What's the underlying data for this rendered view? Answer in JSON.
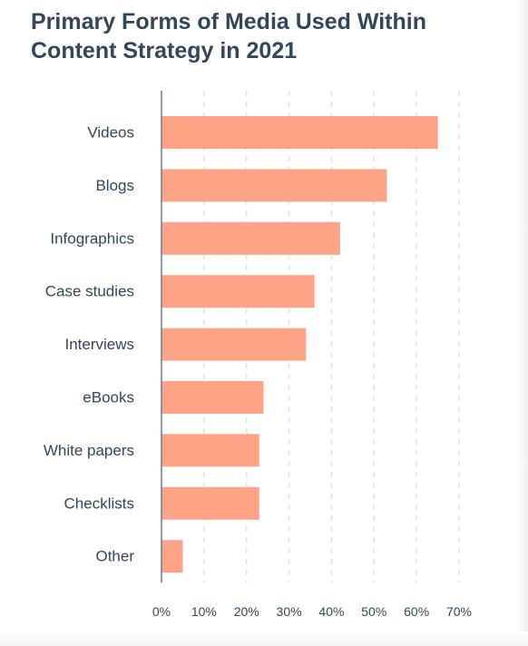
{
  "chart_data": {
    "type": "bar",
    "orientation": "horizontal",
    "title": "Primary Forms of Media Used Within Content Strategy in 2021",
    "categories": [
      "Videos",
      "Blogs",
      "Infographics",
      "Case studies",
      "Interviews",
      "eBooks",
      "White papers",
      "Checklists",
      "Other"
    ],
    "values": [
      65,
      53,
      42,
      36,
      34,
      24,
      23,
      23,
      5
    ],
    "xlim": [
      0,
      70
    ],
    "xticks": [
      0,
      10,
      20,
      30,
      40,
      50,
      60,
      70
    ],
    "xtick_labels": [
      "0%",
      "10%",
      "20%",
      "30%",
      "40%",
      "50%",
      "60%",
      "70%"
    ],
    "grid": "vertical dashed",
    "legend": "none",
    "colors": {
      "bar": "#ffa386",
      "text": "#33475b",
      "axis": "#6b7c8d",
      "grid": "#dfe3eb"
    }
  }
}
